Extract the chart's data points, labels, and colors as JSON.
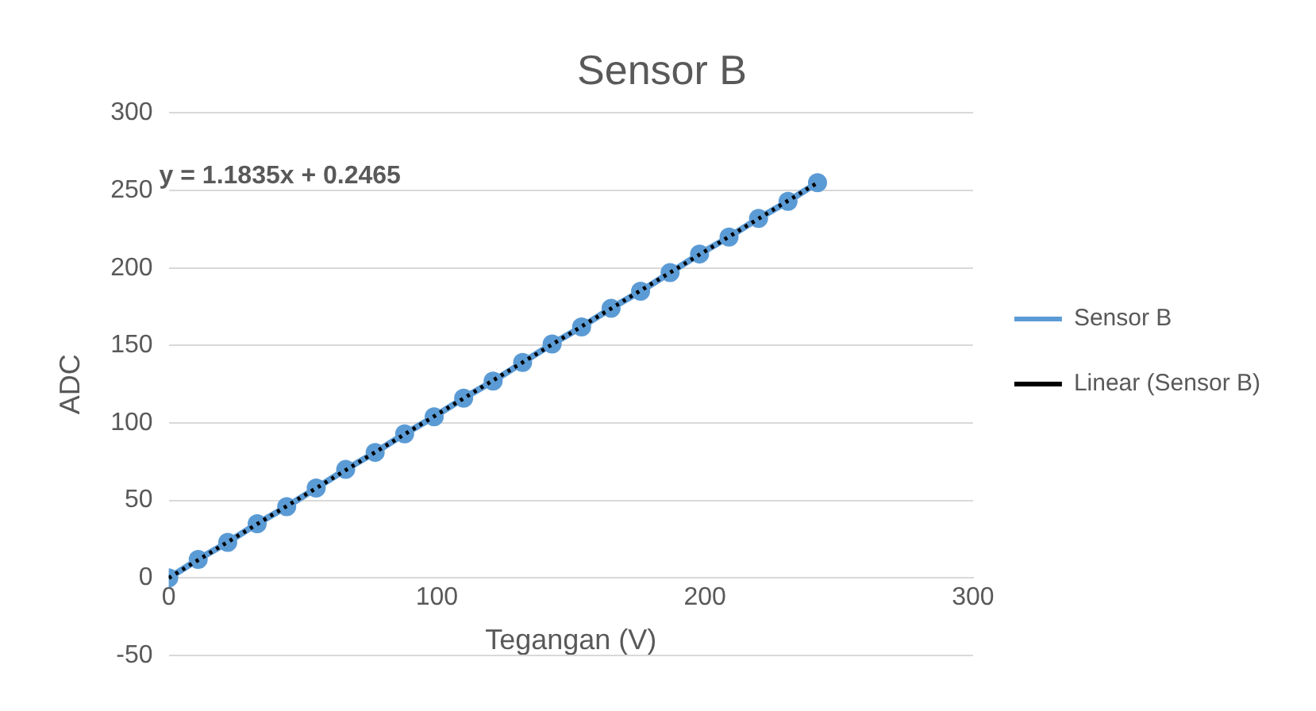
{
  "chart_data": {
    "type": "scatter",
    "title": "Sensor B",
    "xlabel": "Tegangan (V)",
    "ylabel": "ADC",
    "xlim": [
      0,
      300
    ],
    "xticks": [
      0,
      100,
      200,
      300
    ],
    "ylim": [
      -50,
      300
    ],
    "yticks": [
      -50,
      0,
      50,
      100,
      150,
      200,
      250,
      300
    ],
    "grid": "y",
    "legend": "right",
    "annotations": [
      "y = 1.1835x + 0.2465"
    ],
    "series": [
      {
        "name": "Sensor B",
        "type": "line",
        "color": "#5b9bd5",
        "marker": "circle",
        "line_style": "solid",
        "x": [
          0,
          11,
          22,
          33,
          44,
          55,
          66,
          77,
          88,
          99,
          110,
          121,
          132,
          143,
          154,
          165,
          176,
          187,
          198,
          209,
          220,
          231,
          242
        ],
        "values": [
          0,
          12,
          23,
          35,
          46,
          58,
          70,
          81,
          93,
          104,
          116,
          127,
          139,
          151,
          162,
          174,
          185,
          197,
          209,
          220,
          232,
          243,
          255
        ]
      },
      {
        "name": "Linear (Sensor B)",
        "type": "line",
        "color": "#000000",
        "marker": "none",
        "line_style": "dotted",
        "x": [
          0,
          242
        ],
        "values": [
          0,
          255
        ]
      }
    ]
  }
}
